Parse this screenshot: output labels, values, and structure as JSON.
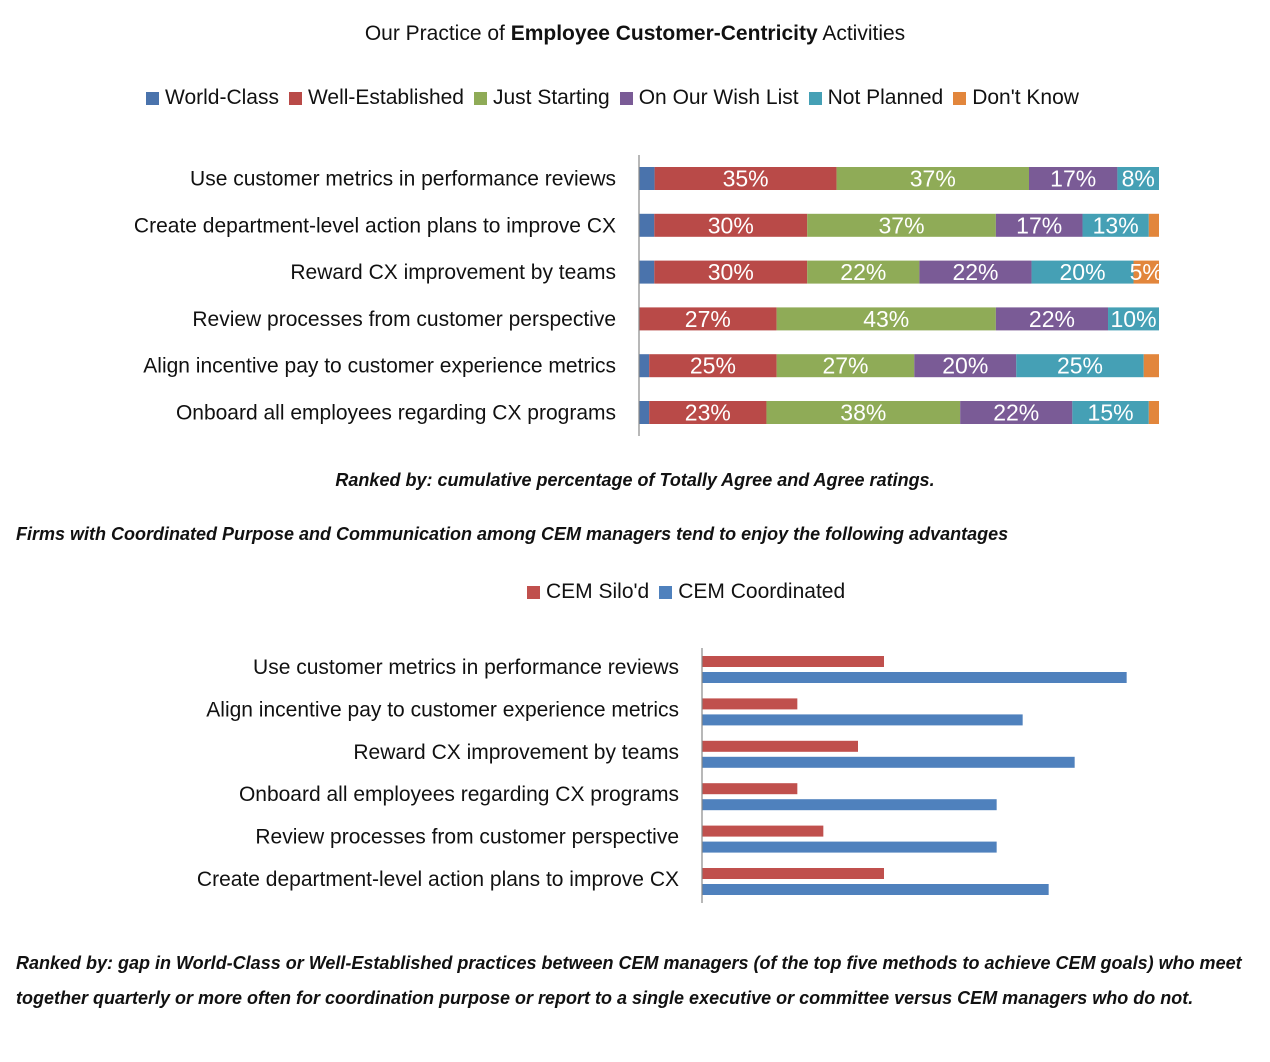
{
  "page": {
    "title_prefix": "Our Practice of ",
    "title_bold": "Employee Customer-Centricity",
    "title_suffix": " Activities",
    "note1": "Ranked by: cumulative percentage of Totally Agree and Agree ratings.",
    "note2": "Firms with Coordinated Purpose and Communication among CEM managers tend to enjoy the following advantages",
    "note3": "Ranked by: gap in World-Class or Well-Established practices between CEM managers (of the top five methods to achieve CEM goals) who meet together quarterly or more often for coordination purpose or report to a single executive or committee versus CEM managers who do not."
  },
  "chart_data": [
    {
      "type": "bar",
      "orientation": "horizontal",
      "stacked": true,
      "title": "Our Practice of Employee Customer-Centricity Activities",
      "legend_position": "top",
      "categories": [
        "Use customer metrics in performance reviews",
        "Create department-level action plans to improve CX",
        "Reward CX improvement by teams",
        "Review processes from customer perspective",
        "Align incentive pay to customer experience metrics",
        "Onboard all employees regarding CX programs"
      ],
      "series": [
        {
          "name": "World-Class",
          "color": "#4a73ac",
          "values": [
            3,
            3,
            3,
            0,
            2,
            2
          ],
          "labels": [
            "",
            "",
            "",
            "",
            "",
            ""
          ]
        },
        {
          "name": "Well-Established",
          "color": "#b94a48",
          "values": [
            35,
            30,
            30,
            27,
            25,
            23
          ],
          "labels": [
            "35%",
            "30%",
            "30%",
            "27%",
            "25%",
            "23%"
          ]
        },
        {
          "name": "Just Starting",
          "color": "#8fab57",
          "values": [
            37,
            37,
            22,
            43,
            27,
            38
          ],
          "labels": [
            "37%",
            "37%",
            "22%",
            "43%",
            "27%",
            "38%"
          ]
        },
        {
          "name": "On Our Wish List",
          "color": "#7a5b96",
          "values": [
            17,
            17,
            22,
            22,
            20,
            22
          ],
          "labels": [
            "17%",
            "17%",
            "22%",
            "22%",
            "20%",
            "22%"
          ]
        },
        {
          "name": "Not Planned",
          "color": "#45a0b5",
          "values": [
            8,
            13,
            20,
            10,
            25,
            15
          ],
          "labels": [
            "8%",
            "13%",
            "20%",
            "10%",
            "25%",
            "15%"
          ]
        },
        {
          "name": "Don't Know",
          "color": "#e2863c",
          "values": [
            0,
            2,
            5,
            0,
            3,
            2
          ],
          "labels": [
            "",
            "",
            "5%",
            "",
            "",
            ""
          ]
        }
      ],
      "grid": false
    },
    {
      "type": "bar",
      "orientation": "horizontal",
      "title": "",
      "legend_position": "top",
      "categories": [
        "Use customer metrics in performance reviews",
        "Align incentive pay to customer experience metrics",
        "Reward CX improvement by teams",
        "Onboard all employees regarding CX programs",
        "Review processes from customer perspective",
        "Create department-level action plans to improve CX"
      ],
      "series": [
        {
          "name": "CEM Silo'd",
          "color": "#c0504d",
          "values": [
            0.21,
            0.11,
            0.18,
            0.11,
            0.14,
            0.21
          ]
        },
        {
          "name": "CEM Coordinated",
          "color": "#4f81bd",
          "values": [
            0.49,
            0.37,
            0.43,
            0.34,
            0.34,
            0.4
          ]
        }
      ],
      "xlim": [
        0,
        0.6
      ],
      "grid": false
    }
  ]
}
